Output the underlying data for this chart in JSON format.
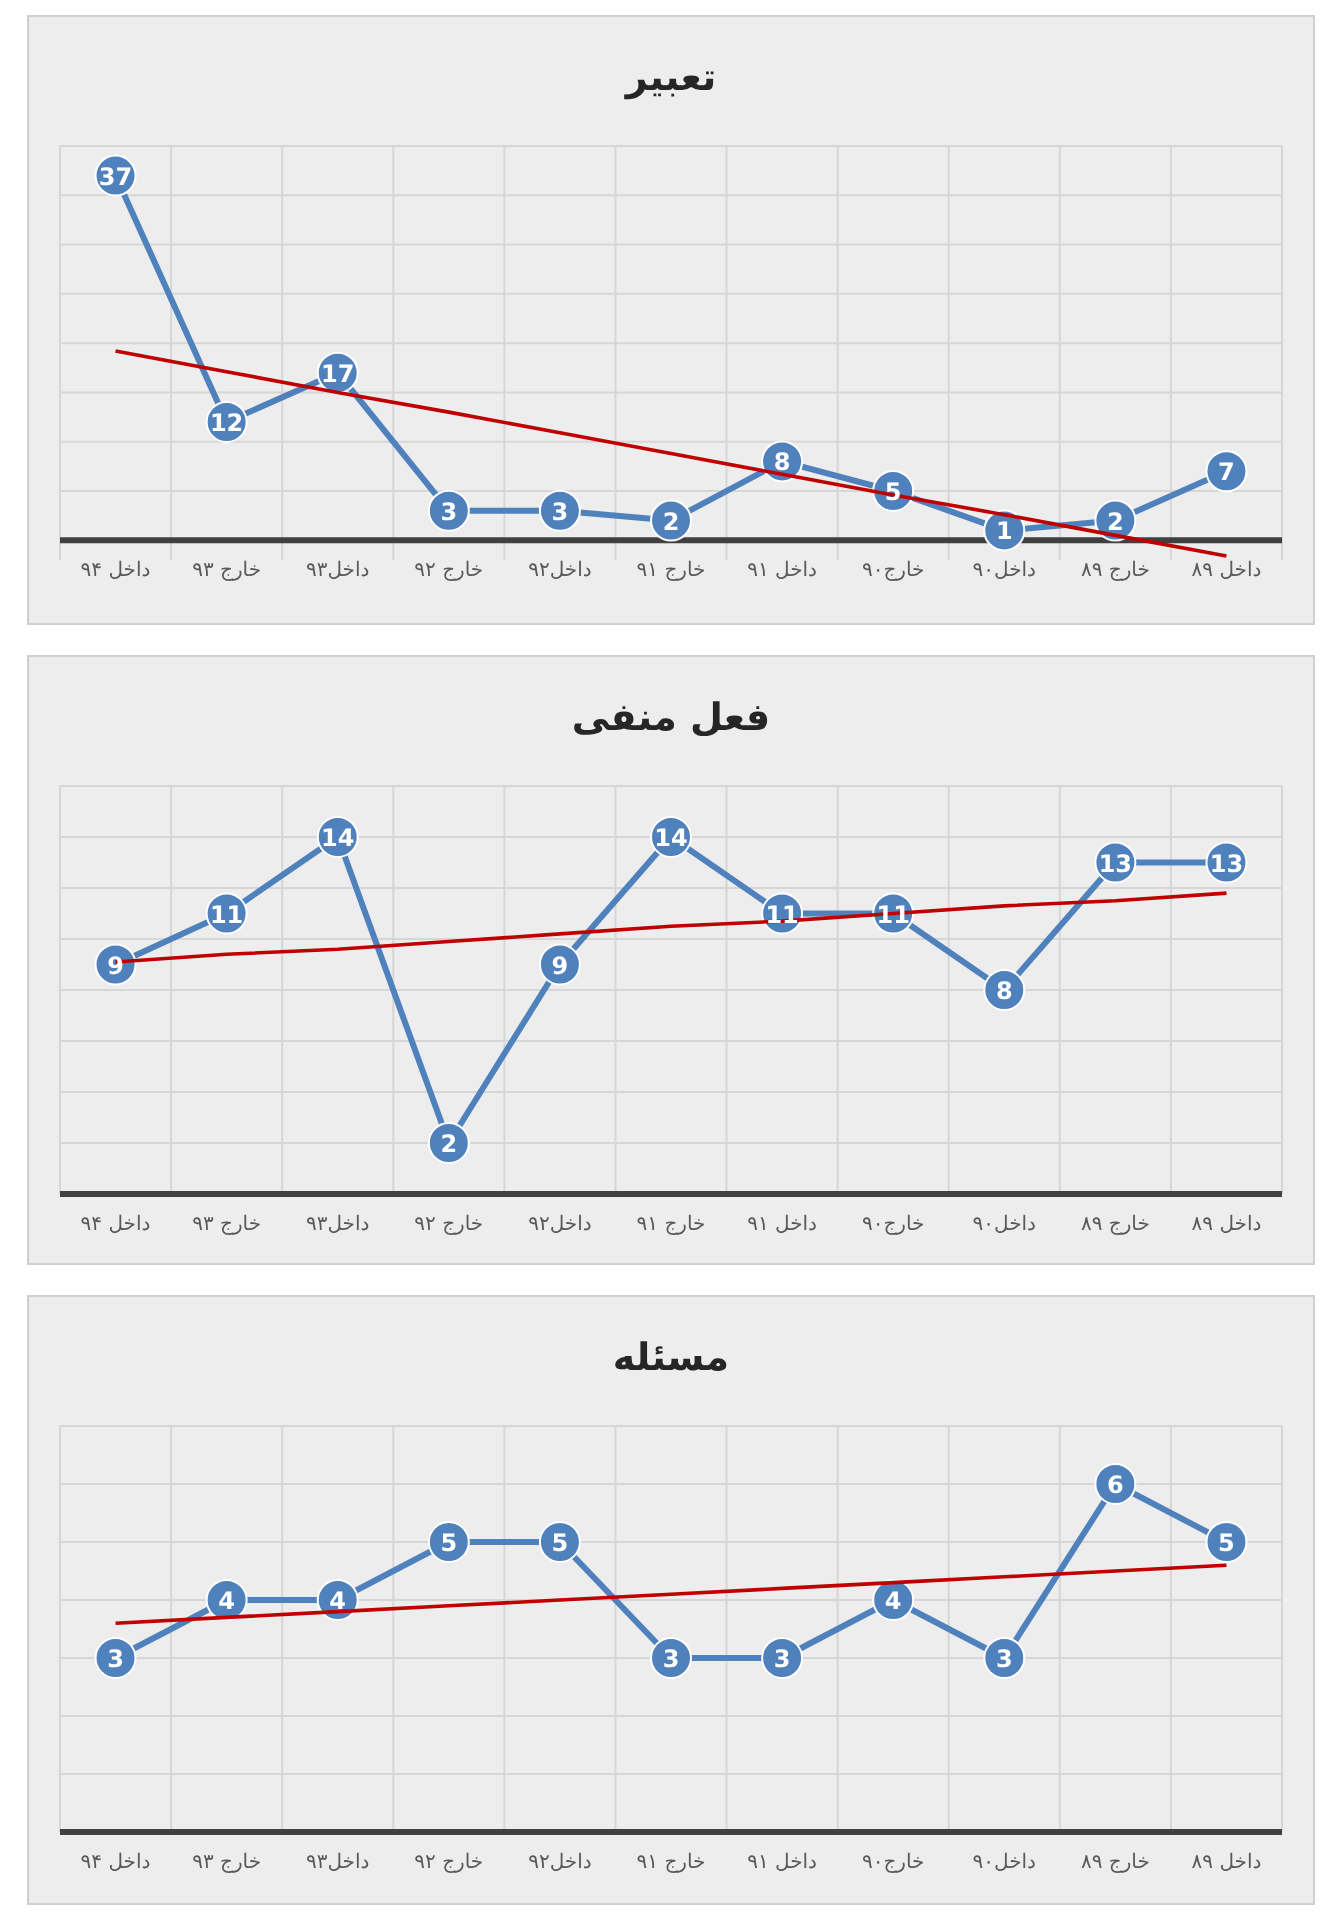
{
  "chart_data": [
    {
      "type": "line",
      "title": "تعبیر",
      "categories": [
        "داخل ۹۴",
        "خارج ۹۳",
        "داخل۹۳",
        "خارج ۹۲",
        "داخل۹۲",
        "خارج ۹۱",
        "داخل ۹۱",
        "خارج۹۰",
        "داخل۹۰",
        "خارج ۸۹",
        "داخل ۸۹"
      ],
      "series": [
        {
          "color": "#4f81bd",
          "marker": "circle",
          "values": [
            37,
            12,
            17,
            3,
            3,
            2,
            8,
            5,
            1,
            2,
            7
          ],
          "value_labels": [
            "37",
            "12",
            "17",
            "3",
            "3",
            "2",
            "8",
            "5",
            "1",
            "2",
            "7"
          ]
        },
        {
          "type": "line",
          "color": "#c00000",
          "marker": "none",
          "values": [
            19.2,
            17.1,
            15.0,
            13.0,
            10.9,
            8.8,
            6.7,
            4.6,
            2.6,
            0.5,
            -1.6
          ]
        }
      ],
      "ylim": [
        -2,
        40
      ],
      "yticks": [
        {
          "value": 0,
          "label": null
        },
        {
          "value": 5,
          "label": null
        },
        {
          "value": 10,
          "label": null
        },
        {
          "value": 15,
          "label": null
        },
        {
          "value": 20,
          "label": null
        },
        {
          "value": 25,
          "label": null
        },
        {
          "value": 30,
          "label": null
        },
        {
          "value": 35,
          "label": null
        },
        {
          "value": 40,
          "label": null
        }
      ],
      "tick_labels": "x",
      "grid": true
    },
    {
      "type": "line",
      "title": "فعل منفی",
      "categories": [
        "داخل ۹۴",
        "خارج ۹۳",
        "داخل۹۳",
        "خارج ۹۲",
        "داخل۹۲",
        "خارج ۹۱",
        "داخل ۹۱",
        "خارج۹۰",
        "داخل۹۰",
        "خارج ۸۹",
        "داخل ۸۹"
      ],
      "series": [
        {
          "color": "#4f81bd",
          "marker": "circle",
          "values": [
            9,
            11,
            14,
            2,
            9,
            14,
            11,
            11,
            8,
            13,
            13
          ],
          "value_labels": [
            "9",
            "11",
            "14",
            "2",
            "9",
            "14",
            "11",
            "11",
            "8",
            "13",
            "13"
          ]
        },
        {
          "type": "line",
          "color": "#c00000",
          "marker": "none",
          "values": [
            9.1,
            9.4,
            9.6,
            9.9,
            10.2,
            10.5,
            10.7,
            11.0,
            11.3,
            11.5,
            11.8
          ]
        }
      ],
      "ylim": [
        0,
        16
      ],
      "yticks": [
        {
          "value": 0,
          "label": null
        },
        {
          "value": 2,
          "label": null
        },
        {
          "value": 4,
          "label": null
        },
        {
          "value": 6,
          "label": null
        },
        {
          "value": 8,
          "label": null
        },
        {
          "value": 10,
          "label": null
        },
        {
          "value": 12,
          "label": null
        },
        {
          "value": 14,
          "label": null
        },
        {
          "value": 16,
          "label": null
        }
      ],
      "tick_labels": "x",
      "grid": true
    },
    {
      "type": "line",
      "title": "مسئله",
      "categories": [
        "داخل ۹۴",
        "خارج ۹۳",
        "داخل۹۳",
        "خارج ۹۲",
        "داخل۹۲",
        "خارج ۹۱",
        "داخل ۹۱",
        "خارج۹۰",
        "داخل۹۰",
        "خارج ۸۹",
        "داخل ۸۹"
      ],
      "series": [
        {
          "color": "#4f81bd",
          "marker": "circle",
          "values": [
            3,
            4,
            4,
            5,
            5,
            3,
            3,
            4,
            3,
            6,
            5
          ],
          "value_labels": [
            "3",
            "4",
            "4",
            "5",
            "5",
            "3",
            "3",
            "4",
            "3",
            "6",
            "5"
          ]
        },
        {
          "type": "line",
          "color": "#c00000",
          "marker": "none",
          "values": [
            3.6,
            3.7,
            3.8,
            3.9,
            4.0,
            4.1,
            4.2,
            4.3,
            4.4,
            4.5,
            4.6
          ]
        }
      ],
      "ylim": [
        0,
        7
      ],
      "yticks": [
        {
          "value": 0,
          "label": null
        },
        {
          "value": 1,
          "label": null
        },
        {
          "value": 2,
          "label": null
        },
        {
          "value": 3,
          "label": null
        },
        {
          "value": 4,
          "label": null
        },
        {
          "value": 5,
          "label": null
        },
        {
          "value": 6,
          "label": null
        },
        {
          "value": 7,
          "label": null
        }
      ],
      "tick_labels": "x",
      "grid": true
    }
  ]
}
